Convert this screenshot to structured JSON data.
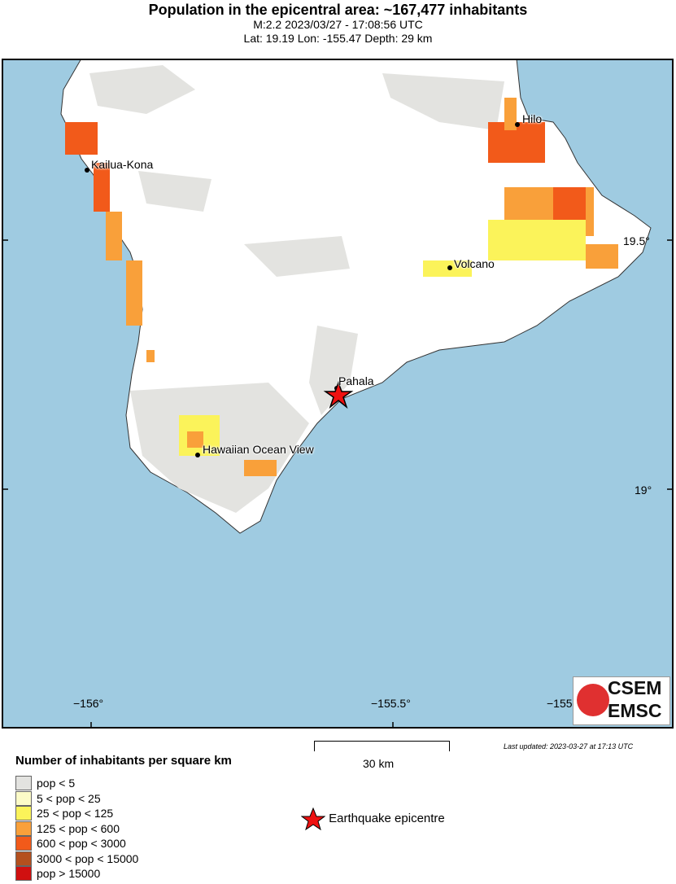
{
  "header": {
    "title": "Population in the epicentral area: ~167,477 inhabitants",
    "line2": "M:2.2 2023/03/27 - 17:08:56 UTC",
    "line3": "Lat: 19.19 Lon: -155.47 Depth: 29 km"
  },
  "map": {
    "places": [
      "Hilo",
      "Kailua-Kona",
      "Volcano",
      "Pahala",
      "Hawaiian Ocean View"
    ],
    "lon_ticks": [
      "−156°",
      "−155.5°",
      "−155"
    ],
    "lat_ticks": [
      "19.5°",
      "19°"
    ],
    "epicenter": {
      "lat": 19.19,
      "lon": -155.47
    },
    "colors": {
      "sea": "#9fcbe1",
      "land": "#ffffff",
      "epicenter": "#ee1111"
    }
  },
  "logo": {
    "line1": "CSEM",
    "line2": "EMSC"
  },
  "last_updated": "Last updated: 2023-03-27 at 17:13 UTC",
  "scale": "30 km",
  "legend": {
    "title": "Number of inhabitants per square km",
    "items": [
      {
        "label": "pop < 5",
        "color": "#e3e3e0"
      },
      {
        "label": "5 < pop < 25",
        "color": "#fcfbc8"
      },
      {
        "label": "25 < pop < 125",
        "color": "#fbf35a"
      },
      {
        "label": "125 < pop < 600",
        "color": "#f9a03a"
      },
      {
        "label": "600 < pop < 3000",
        "color": "#f25a1a"
      },
      {
        "label": "3000 < pop < 15000",
        "color": "#b4501e"
      },
      {
        "label": "pop > 15000",
        "color": "#d01010"
      }
    ],
    "epicentre_label": "Earthquake epicentre"
  }
}
